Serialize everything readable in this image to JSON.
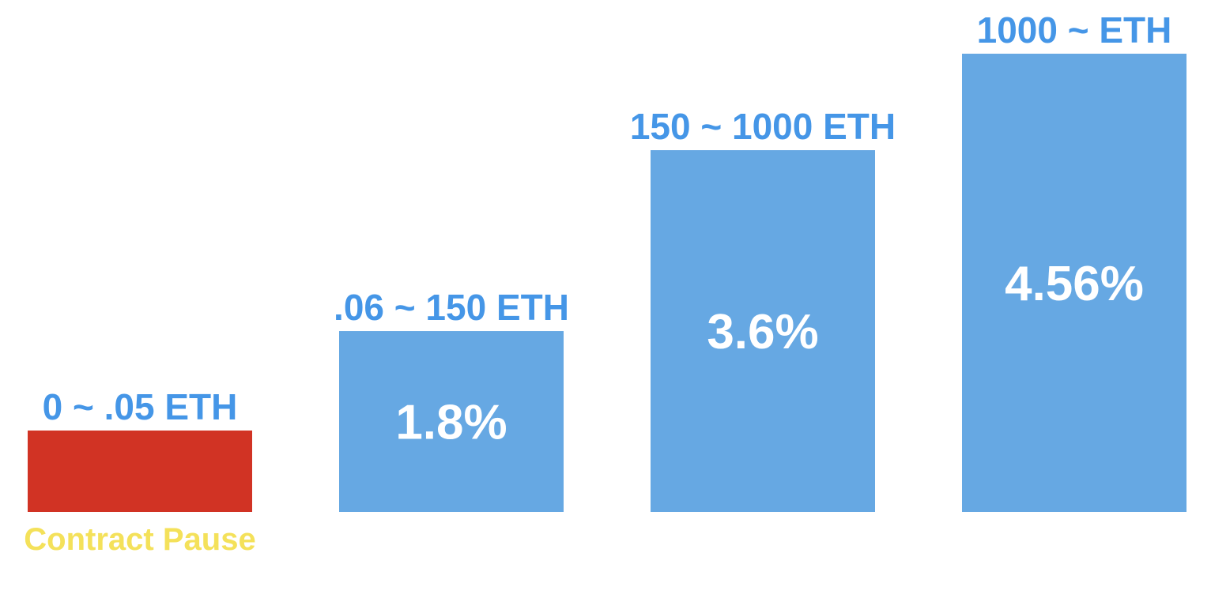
{
  "chart_data": {
    "type": "bar",
    "categories": [
      "0 ~ .05 ETH",
      ".06 ~ 150 ETH",
      "150 ~ 1000 ETH",
      "1000 ~ ETH"
    ],
    "values": [
      0,
      1.8,
      3.6,
      4.56
    ],
    "value_labels": [
      "",
      "1.8%",
      "3.6%",
      "4.56%"
    ],
    "annotations": [
      {
        "category": "0 ~ .05 ETH",
        "text": "Contract Pause"
      }
    ],
    "unit": "%",
    "title": "",
    "xlabel": "",
    "ylabel": "",
    "ylim": [
      0,
      5
    ],
    "grid": false,
    "legend": "none",
    "colors": {
      "bar": "#66a8e3",
      "paused_bar": "#d13324",
      "range_label": "#4596e7",
      "value_label": "#ffffff",
      "note_label": "#f4e15a"
    }
  }
}
